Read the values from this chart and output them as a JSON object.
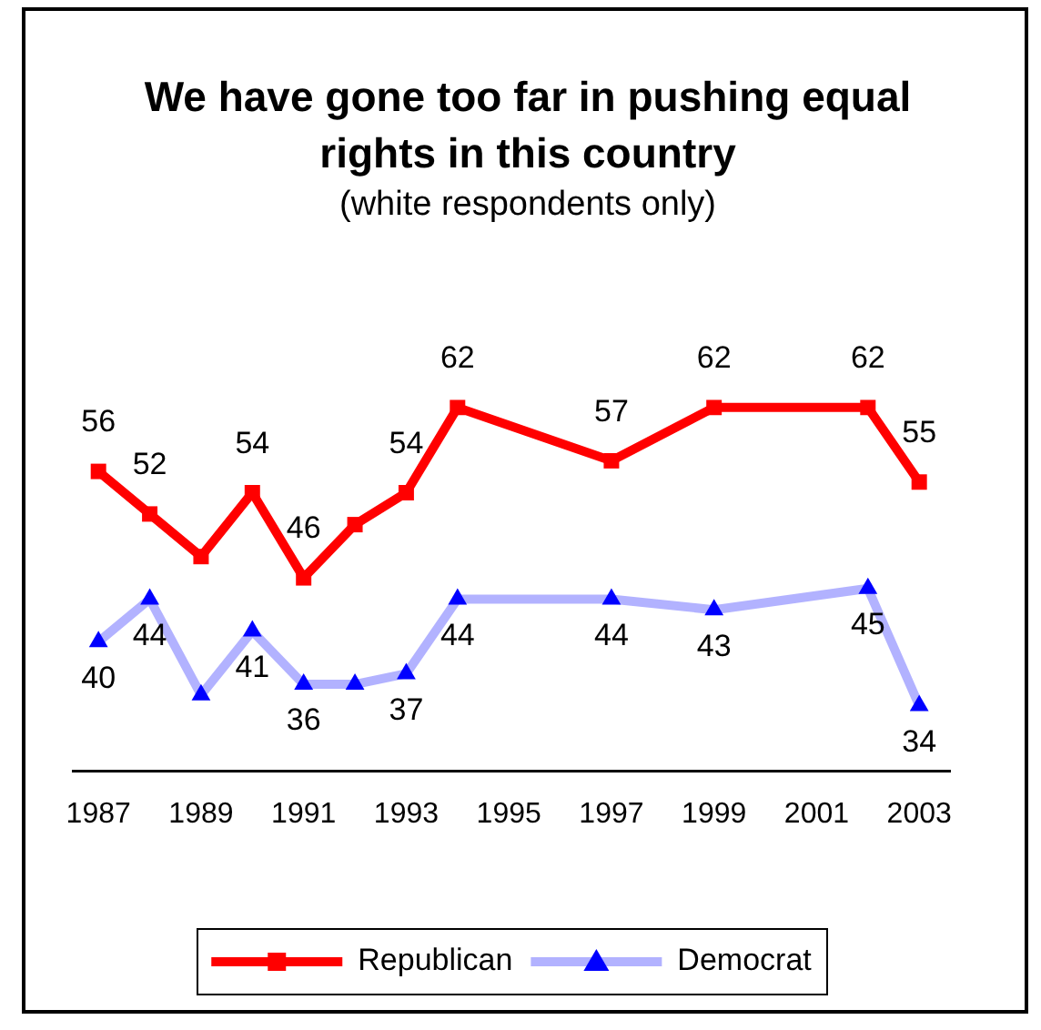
{
  "chart_data": {
    "type": "line",
    "title": "We have gone too far in pushing equal rights in this country",
    "subtitle": "(white respondents only)",
    "x": [
      1987,
      1988,
      1989,
      1990,
      1991,
      1992,
      1993,
      1994,
      1997,
      1999,
      2002,
      2003
    ],
    "series": [
      {
        "name": "Republican",
        "color": "#ff0000",
        "marker": "square",
        "values": [
          56,
          52,
          48,
          54,
          46,
          51,
          54,
          62,
          57,
          62,
          62,
          55
        ],
        "value_labels": [
          "56",
          "52",
          null,
          "54",
          "46",
          null,
          "54",
          "62",
          "57",
          "62",
          "62",
          "55"
        ]
      },
      {
        "name": "Democrat",
        "color": "#0000ff",
        "marker": "triangle",
        "values": [
          40,
          44,
          35,
          41,
          36,
          36,
          37,
          44,
          44,
          43,
          45,
          34
        ],
        "value_labels": [
          "40",
          "44",
          null,
          "41",
          "36",
          null,
          "37",
          "44",
          "44",
          "43",
          "45",
          "34"
        ]
      }
    ],
    "xlim": [
      1986.5,
      2003.6
    ],
    "xticks": [
      1987,
      1989,
      1991,
      1993,
      1995,
      1997,
      1999,
      2001,
      2003
    ],
    "tick_labels": "x",
    "grid": false,
    "legend": "bottom"
  }
}
